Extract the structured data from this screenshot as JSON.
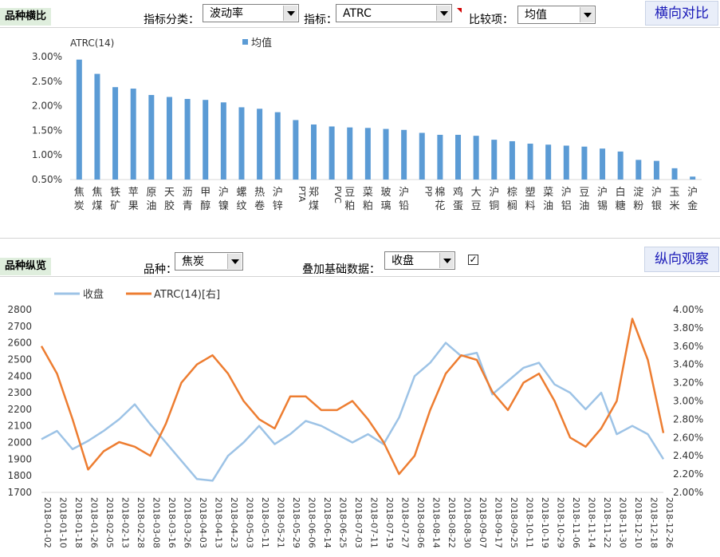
{
  "top": {
    "section_title": "品种横比",
    "category_label": "指标分类：",
    "category_value": "波动率",
    "indicator_label": "指标：",
    "indicator_value": "ATRC",
    "compare_label": "比较项：",
    "compare_value": "均值",
    "button": "横向对比"
  },
  "bottom": {
    "section_title": "品种纵览",
    "variety_label": "品种：",
    "variety_value": "焦炭",
    "overlay_label": "叠加基础数据：",
    "overlay_value": "收盘",
    "overlay_checked": "✓",
    "button": "纵向观察"
  },
  "colors": {
    "bar": "#5b9bd5",
    "close": "#9dc3e6",
    "atrc": "#ed7d31",
    "accent": "#1a1ab8"
  },
  "chart_data": [
    {
      "type": "bar",
      "y_title": "ATRC(14)",
      "legend": [
        "均值"
      ],
      "legend_position": "top",
      "ylim": [
        0.005,
        0.03
      ],
      "yticks": [
        "0.50%",
        "1.00%",
        "1.50%",
        "2.00%",
        "2.50%",
        "3.00%"
      ],
      "categories": [
        "焦炭",
        "焦煤",
        "铁矿",
        "苹果",
        "原油",
        "天胶",
        "沥青",
        "甲醇",
        "沪镍",
        "螺纹",
        "热卷",
        "沪锌",
        "PTA",
        "郑煤",
        "PVC",
        "豆粕",
        "菜粕",
        "玻璃",
        "沪铅",
        "PP",
        "棉花",
        "鸡蛋",
        "大豆",
        "沪铜",
        "棕榈",
        "塑料",
        "菜油",
        "沪铝",
        "豆油",
        "沪锡",
        "白糖",
        "淀粉",
        "沪银",
        "玉米",
        "沪金"
      ],
      "values": [
        0.0294,
        0.0265,
        0.0238,
        0.0235,
        0.0222,
        0.0218,
        0.0214,
        0.0212,
        0.0207,
        0.0197,
        0.0194,
        0.0187,
        0.0171,
        0.0162,
        0.0158,
        0.0156,
        0.0155,
        0.0153,
        0.0151,
        0.0145,
        0.0141,
        0.0141,
        0.0139,
        0.0131,
        0.0128,
        0.0123,
        0.0121,
        0.0119,
        0.0117,
        0.0113,
        0.0107,
        0.009,
        0.0088,
        0.0073,
        0.0056
      ]
    },
    {
      "type": "line",
      "legend_position": "top-left",
      "series": [
        {
          "name": "收盘",
          "axis": "left",
          "x": [
            "2018-01-02",
            "2018-01-10",
            "2018-01-18",
            "2018-01-26",
            "2018-02-05",
            "2018-02-13",
            "2018-02-28",
            "2018-03-08",
            "2018-03-16",
            "2018-03-26",
            "2018-04-03",
            "2018-04-13",
            "2018-04-23",
            "2018-05-03",
            "2018-05-11",
            "2018-05-21",
            "2018-05-29",
            "2018-06-06",
            "2018-06-14",
            "2018-06-25",
            "2018-07-03",
            "2018-07-11",
            "2018-07-19",
            "2018-07-27",
            "2018-08-06",
            "2018-08-14",
            "2018-08-22",
            "2018-08-30",
            "2018-09-07",
            "2018-09-17",
            "2018-09-25",
            "2018-10-11",
            "2018-10-19",
            "2018-10-29",
            "2018-11-06",
            "2018-11-14",
            "2018-11-22",
            "2018-11-30",
            "2018-12-10",
            "2018-12-18",
            "2018-12-26"
          ],
          "values": [
            2020,
            2070,
            1960,
            2010,
            2070,
            2140,
            2230,
            2110,
            2000,
            1890,
            1780,
            1770,
            1920,
            2000,
            2100,
            1990,
            2050,
            2130,
            2100,
            2050,
            2000,
            2050,
            1990,
            2150,
            2400,
            2480,
            2600,
            2520,
            2540,
            2290,
            2370,
            2450,
            2480,
            2350,
            2300,
            2200,
            2300,
            2050,
            2100,
            2050,
            1900
          ]
        },
        {
          "name": "ATRC(14)[右]",
          "axis": "right",
          "x": [
            "2018-01-02",
            "2018-01-10",
            "2018-01-18",
            "2018-01-26",
            "2018-02-05",
            "2018-02-13",
            "2018-02-28",
            "2018-03-08",
            "2018-03-16",
            "2018-03-26",
            "2018-04-03",
            "2018-04-13",
            "2018-04-23",
            "2018-05-03",
            "2018-05-11",
            "2018-05-21",
            "2018-05-29",
            "2018-06-06",
            "2018-06-14",
            "2018-06-25",
            "2018-07-03",
            "2018-07-11",
            "2018-07-19",
            "2018-07-27",
            "2018-08-06",
            "2018-08-14",
            "2018-08-22",
            "2018-08-30",
            "2018-09-07",
            "2018-09-17",
            "2018-09-25",
            "2018-10-11",
            "2018-10-19",
            "2018-10-29",
            "2018-11-06",
            "2018-11-14",
            "2018-11-22",
            "2018-11-30",
            "2018-12-10",
            "2018-12-18",
            "2018-12-26"
          ],
          "values": [
            0.036,
            0.033,
            0.028,
            0.0225,
            0.0245,
            0.0255,
            0.025,
            0.024,
            0.0275,
            0.032,
            0.034,
            0.035,
            0.033,
            0.03,
            0.028,
            0.027,
            0.0305,
            0.0305,
            0.029,
            0.029,
            0.03,
            0.028,
            0.0255,
            0.022,
            0.024,
            0.029,
            0.033,
            0.035,
            0.0345,
            0.031,
            0.029,
            0.032,
            0.033,
            0.03,
            0.026,
            0.025,
            0.027,
            0.03,
            0.039,
            0.0345,
            0.0265
          ]
        }
      ],
      "ylim_left": [
        1700,
        2800
      ],
      "yticks_left": [
        "1700",
        "1800",
        "1900",
        "2000",
        "2100",
        "2200",
        "2300",
        "2400",
        "2500",
        "2600",
        "2700",
        "2800"
      ],
      "ylim_right": [
        0.02,
        0.04
      ],
      "yticks_right": [
        "2.00%",
        "2.20%",
        "2.40%",
        "2.60%",
        "2.80%",
        "3.00%",
        "3.20%",
        "3.40%",
        "3.60%",
        "3.80%",
        "4.00%"
      ],
      "xticks": [
        "2018-01-02",
        "2018-01-10",
        "2018-01-18",
        "2018-01-26",
        "2018-02-05",
        "2018-02-13",
        "2018-02-28",
        "2018-03-08",
        "2018-03-16",
        "2018-03-26",
        "2018-04-03",
        "2018-04-13",
        "2018-04-23",
        "2018-05-03",
        "2018-05-11",
        "2018-05-21",
        "2018-05-29",
        "2018-06-06",
        "2018-06-14",
        "2018-06-25",
        "2018-07-03",
        "2018-07-11",
        "2018-07-19",
        "2018-07-27",
        "2018-08-06",
        "2018-08-14",
        "2018-08-22",
        "2018-08-30",
        "2018-09-07",
        "2018-09-17",
        "2018-09-25",
        "2018-10-11",
        "2018-10-19",
        "2018-10-29",
        "2018-11-06",
        "2018-11-14",
        "2018-11-22",
        "2018-11-30",
        "2018-12-10",
        "2018-12-18",
        "2018-12-26"
      ]
    }
  ]
}
